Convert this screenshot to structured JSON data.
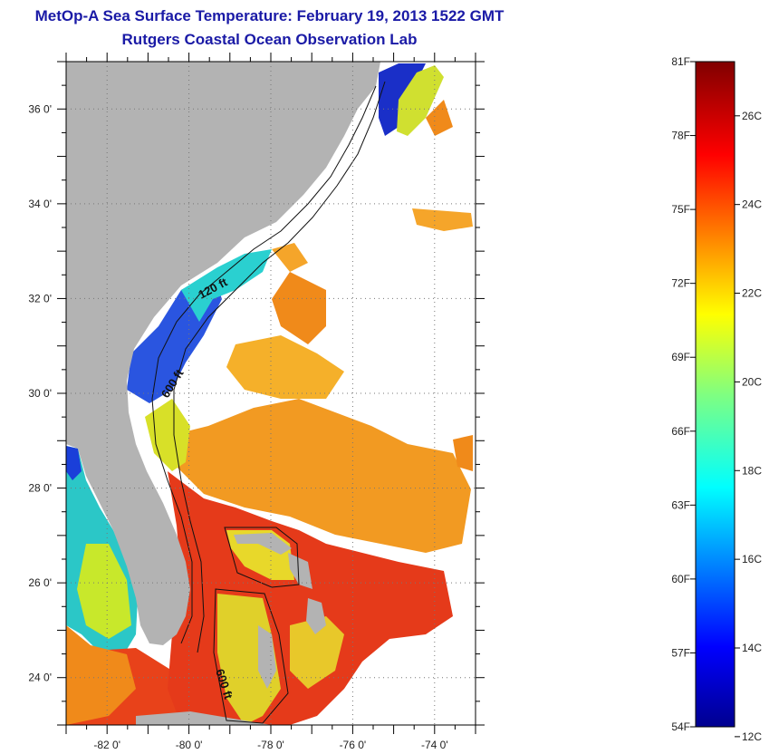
{
  "title": "MetOp-A Sea Surface Temperature:  February 19, 2013 1522 GMT",
  "subtitle": "Rutgers Coastal Ocean Observation Lab",
  "map": {
    "lon_range": [
      -83,
      -73
    ],
    "lat_range": [
      23,
      37
    ],
    "lon_ticks": [
      "-82 0'",
      "-80 0'",
      "-78 0'",
      "-76 0'",
      "-74 0'"
    ],
    "lat_ticks": [
      "36 0'",
      "34 0'",
      "32 0'",
      "30 0'",
      "28 0'",
      "26 0'",
      "24 0'"
    ],
    "contour_labels": [
      "120 ft",
      "600 ft",
      "600 ft"
    ],
    "colors": {
      "land": "#b3b3b3",
      "no_data": "#ffffff"
    }
  },
  "colorbar": {
    "min_label_f": "54F",
    "max_label_f": "81F",
    "min_label_c": "12C",
    "fahrenheit_ticks": [
      "81F",
      "78F",
      "75F",
      "72F",
      "69F",
      "66F",
      "63F",
      "60F",
      "57F",
      "54F"
    ],
    "celsius_ticks": [
      "26C",
      "24C",
      "22C",
      "20C",
      "18C",
      "16C",
      "14C",
      "12C"
    ],
    "celsius_values": [
      26,
      24,
      22,
      20,
      18,
      16,
      14,
      12
    ],
    "fahrenheit_values": [
      81,
      78,
      75,
      72,
      69,
      66,
      63,
      60,
      57,
      54
    ],
    "colormap": "jet"
  }
}
